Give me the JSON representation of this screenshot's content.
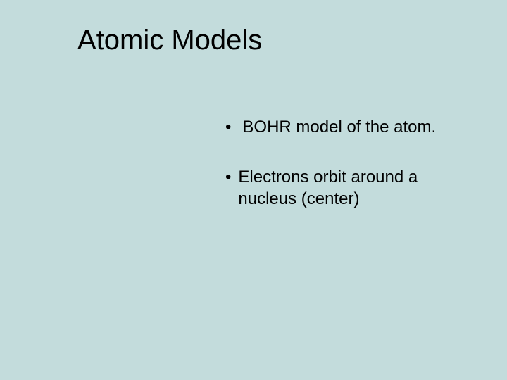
{
  "slide": {
    "title": "Atomic Models",
    "bullets": [
      {
        "text": " BOHR model of the atom."
      },
      {
        "text": "Electrons orbit around a nucleus (center)"
      }
    ],
    "bullet_marker": "•",
    "background_color": "#c3dcdc",
    "text_color": "#000000",
    "title_fontsize": 40,
    "body_fontsize": 24
  }
}
